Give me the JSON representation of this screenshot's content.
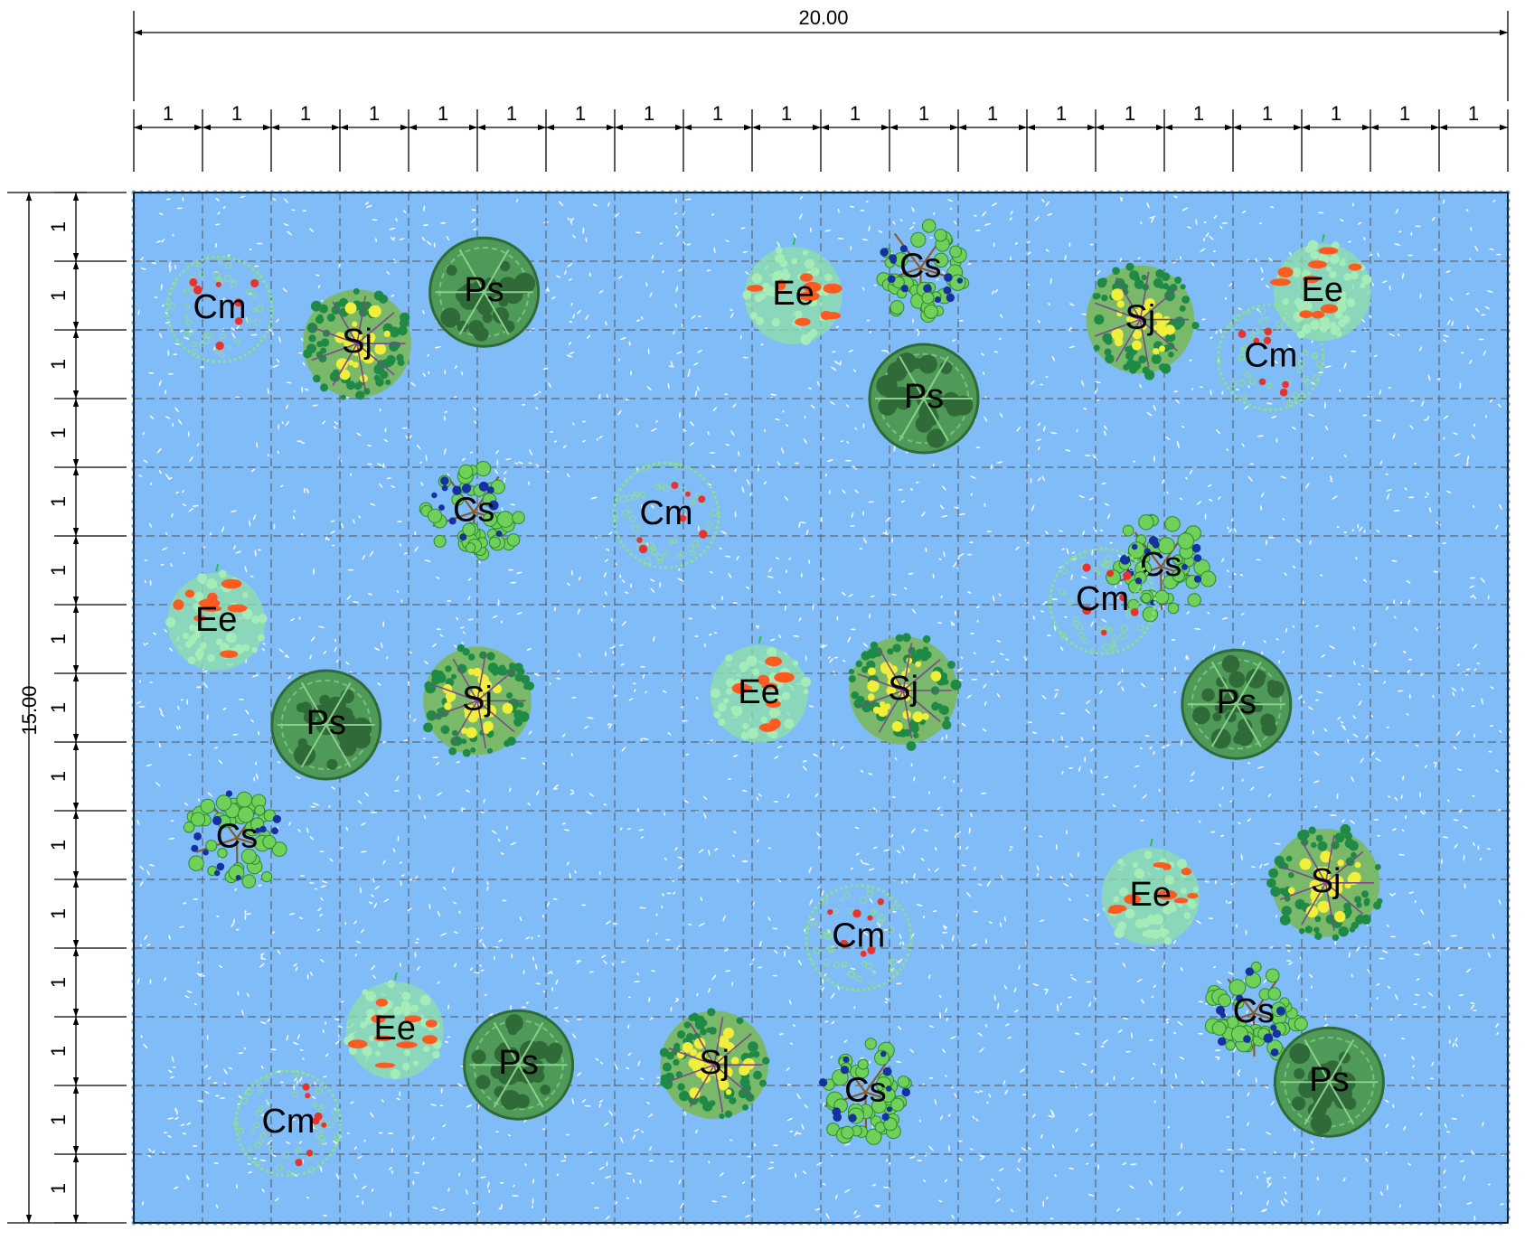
{
  "diagram": {
    "grid_cols": 20,
    "grid_rows": 15,
    "total_width_label": "20.00",
    "total_height_label": "15.00",
    "cell_label": "1",
    "colors": {
      "water": "#7fbcf8",
      "water_fleck": "#ffffff",
      "grid_line": "#555555",
      "dim_line": "#000000",
      "label": "#000000",
      "Ps": "#3d7a45",
      "Cs": "#4cb848",
      "Cs_flower": "#1530a0",
      "Sj": "#2e9a4e",
      "Sj_flower": "#f2ef3a",
      "Cm": "#8fe08a",
      "Ee": "#8fe0a8",
      "fruit": "#ff5a1f"
    },
    "species": {
      "Ps": {
        "label": "Ps",
        "icon": "dense-canopy-icon"
      },
      "Cs": {
        "label": "Cs",
        "icon": "leafy-branch-icon"
      },
      "Sj": {
        "label": "Sj",
        "icon": "flowering-shrub-icon"
      },
      "Cm": {
        "label": "Cm",
        "icon": "dotted-canopy-icon"
      },
      "Ee": {
        "label": "Ee",
        "icon": "fruiting-shrub-icon"
      }
    },
    "plants": [
      {
        "type": "Cm",
        "label": "Cm",
        "x": 1.25,
        "y": 1.7
      },
      {
        "type": "Sj",
        "label": "Sj",
        "x": 3.25,
        "y": 2.2
      },
      {
        "type": "Ps",
        "label": "Ps",
        "x": 5.1,
        "y": 1.45
      },
      {
        "type": "Ee",
        "label": "Ee",
        "x": 9.6,
        "y": 1.5
      },
      {
        "type": "Cs",
        "label": "Cs",
        "x": 11.45,
        "y": 1.1
      },
      {
        "type": "Ps",
        "label": "Ps",
        "x": 11.5,
        "y": 3.0
      },
      {
        "type": "Sj",
        "label": "Sj",
        "x": 14.65,
        "y": 1.85
      },
      {
        "type": "Cm",
        "label": "Cm",
        "x": 16.55,
        "y": 2.4
      },
      {
        "type": "Ee",
        "label": "Ee",
        "x": 17.3,
        "y": 1.45
      },
      {
        "type": "Cs",
        "label": "Cs",
        "x": 4.95,
        "y": 4.65
      },
      {
        "type": "Cm",
        "label": "Cm",
        "x": 7.75,
        "y": 4.7
      },
      {
        "type": "Cs",
        "label": "Cs",
        "x": 14.95,
        "y": 5.45
      },
      {
        "type": "Cm",
        "label": "Cm",
        "x": 14.1,
        "y": 5.95
      },
      {
        "type": "Ee",
        "label": "Ee",
        "x": 1.2,
        "y": 6.25
      },
      {
        "type": "Ps",
        "label": "Ps",
        "x": 2.8,
        "y": 7.75
      },
      {
        "type": "Sj",
        "label": "Sj",
        "x": 5.0,
        "y": 7.4
      },
      {
        "type": "Ee",
        "label": "Ee",
        "x": 9.1,
        "y": 7.3
      },
      {
        "type": "Sj",
        "label": "Sj",
        "x": 11.2,
        "y": 7.25
      },
      {
        "type": "Ps",
        "label": "Ps",
        "x": 16.05,
        "y": 7.45
      },
      {
        "type": "Cs",
        "label": "Cs",
        "x": 1.5,
        "y": 9.4
      },
      {
        "type": "Ee",
        "label": "Ee",
        "x": 14.8,
        "y": 10.25
      },
      {
        "type": "Sj",
        "label": "Sj",
        "x": 17.35,
        "y": 10.05
      },
      {
        "type": "Cm",
        "label": "Cm",
        "x": 10.55,
        "y": 10.85
      },
      {
        "type": "Cs",
        "label": "Cs",
        "x": 16.3,
        "y": 11.95
      },
      {
        "type": "Ee",
        "label": "Ee",
        "x": 3.8,
        "y": 12.2
      },
      {
        "type": "Ps",
        "label": "Ps",
        "x": 5.6,
        "y": 12.7
      },
      {
        "type": "Sj",
        "label": "Sj",
        "x": 8.45,
        "y": 12.7
      },
      {
        "type": "Cs",
        "label": "Cs",
        "x": 10.65,
        "y": 13.1
      },
      {
        "type": "Cm",
        "label": "Cm",
        "x": 2.25,
        "y": 13.55
      },
      {
        "type": "Ps",
        "label": "Ps",
        "x": 17.4,
        "y": 12.95
      }
    ]
  }
}
